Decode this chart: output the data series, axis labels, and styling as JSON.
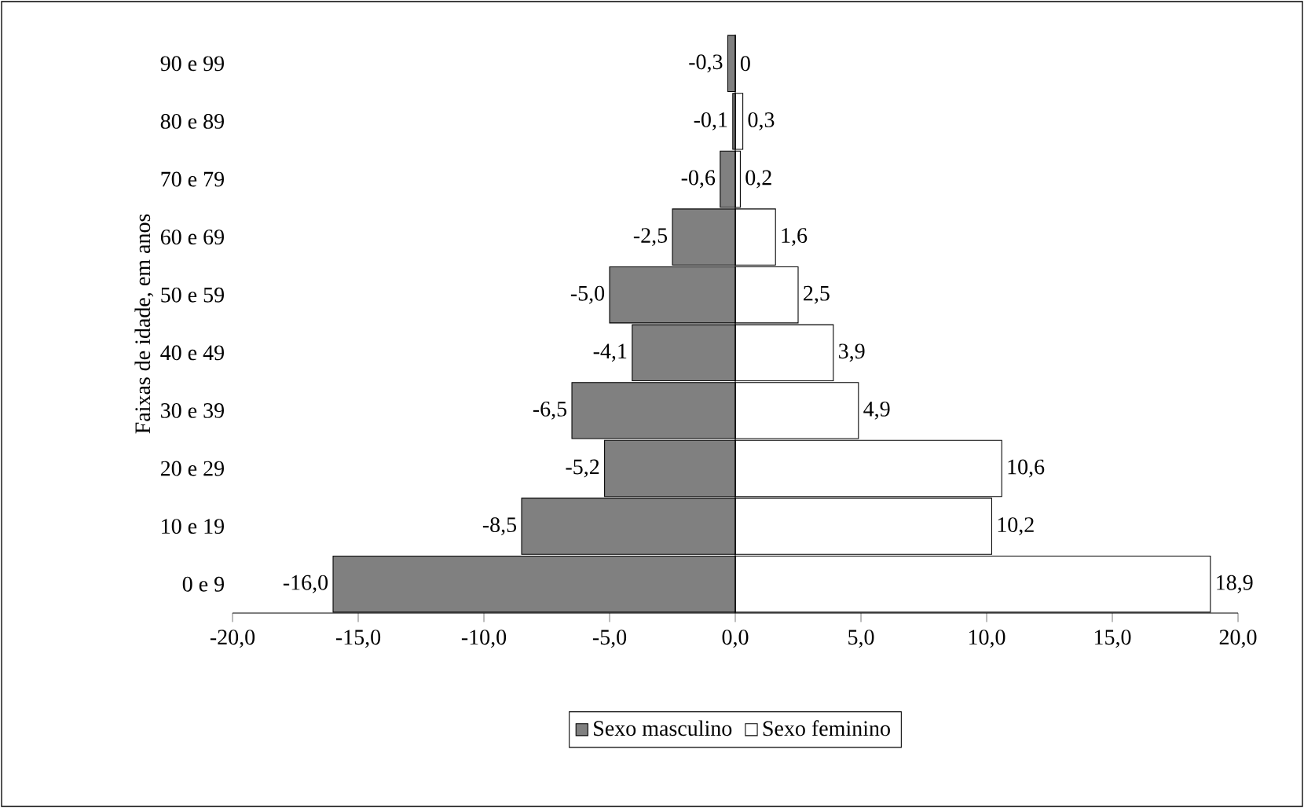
{
  "chart_data": {
    "type": "bar",
    "orientation": "horizontal",
    "ylabel": "Faixas de idade, em anos",
    "categories": [
      "90 e 99",
      "80 e 89",
      "70 e 79",
      "60 e 69",
      "50 e 59",
      "40 e 49",
      "30 e 39",
      "20 e 29",
      "10 e 19",
      "0 e 9"
    ],
    "series": [
      {
        "name": "Sexo masculino",
        "color": "#808080",
        "values": [
          -0.3,
          -0.1,
          -0.6,
          -2.5,
          -5.0,
          -4.1,
          -6.5,
          -5.2,
          -8.5,
          -16.0
        ],
        "value_labels": [
          "-0,3",
          "-0,1",
          "-0,6",
          "-2,5",
          "-5,0",
          "-4,1",
          "-6,5",
          "-5,2",
          "-8,5",
          "-16,0"
        ]
      },
      {
        "name": "Sexo feminino",
        "color": "#ffffff",
        "values": [
          0,
          0.3,
          0.2,
          1.6,
          2.5,
          3.9,
          4.9,
          10.6,
          10.2,
          18.9
        ],
        "value_labels": [
          "0",
          "0,3",
          "0,2",
          "1,6",
          "2,5",
          "3,9",
          "4,9",
          "10,6",
          "10,2",
          "18,9"
        ]
      }
    ],
    "xlim": [
      -20,
      20
    ],
    "xticks": [
      {
        "value": -20,
        "label": "-20,0"
      },
      {
        "value": -15,
        "label": "-15,0"
      },
      {
        "value": -10,
        "label": "-10,0"
      },
      {
        "value": -5,
        "label": "-5,0"
      },
      {
        "value": 0,
        "label": "0,0"
      },
      {
        "value": 5,
        "label": "5,0"
      },
      {
        "value": 10,
        "label": "10,0"
      },
      {
        "value": 15,
        "label": "15,0"
      },
      {
        "value": 20,
        "label": "20,0"
      }
    ],
    "legend": "bottom",
    "stacked": true
  }
}
